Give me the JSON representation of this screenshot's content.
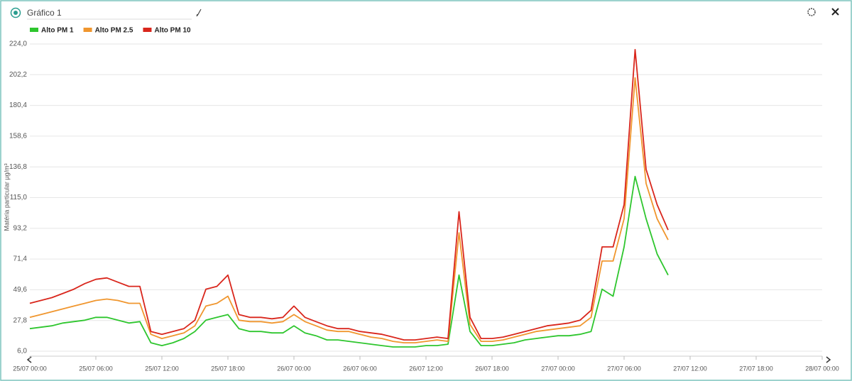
{
  "header": {
    "title": "Gráfico 1"
  },
  "chart_data": {
    "type": "line",
    "y_label": "Matéria particular µg/m³",
    "x": [
      0,
      1,
      2,
      3,
      4,
      5,
      6,
      7,
      8,
      9,
      10,
      11,
      12,
      13,
      14,
      15,
      16,
      17,
      18,
      19,
      20,
      21,
      22,
      23,
      24,
      25,
      26,
      27,
      28,
      29,
      30,
      31,
      32,
      33,
      34,
      35,
      36,
      37,
      38,
      39,
      40,
      41,
      42,
      43,
      44,
      45,
      46,
      47,
      48,
      49,
      50,
      51,
      52,
      53,
      54,
      55,
      56,
      57,
      58
    ],
    "series": [
      {
        "name": "Alto PM 1",
        "color": "#2ec62e",
        "values": [
          22,
          23,
          24,
          26,
          27,
          28,
          30,
          30,
          28,
          26,
          27,
          12,
          10,
          12,
          15,
          20,
          28,
          30,
          32,
          22,
          20,
          20,
          19,
          19,
          24,
          19,
          17,
          14,
          14,
          13,
          12,
          11,
          10,
          9,
          9,
          9,
          10,
          10,
          11,
          60,
          20,
          10,
          10,
          11,
          12,
          14,
          15,
          16,
          17,
          17,
          18,
          20,
          50,
          45,
          80,
          130,
          100,
          75,
          60
        ]
      },
      {
        "name": "Alto PM 2.5",
        "color": "#f0962e",
        "values": [
          30,
          32,
          34,
          36,
          38,
          40,
          42,
          43,
          42,
          40,
          40,
          18,
          15,
          17,
          19,
          24,
          38,
          40,
          45,
          28,
          27,
          27,
          26,
          27,
          32,
          27,
          24,
          21,
          20,
          20,
          18,
          16,
          15,
          13,
          12,
          12,
          13,
          14,
          13,
          90,
          25,
          13,
          13,
          14,
          16,
          18,
          20,
          21,
          22,
          23,
          24,
          30,
          70,
          70,
          100,
          200,
          125,
          100,
          85
        ]
      },
      {
        "name": "Alto PM 10",
        "color": "#d9261c",
        "values": [
          40,
          42,
          44,
          47,
          50,
          54,
          57,
          58,
          55,
          52,
          52,
          20,
          18,
          20,
          22,
          28,
          50,
          52,
          60,
          32,
          30,
          30,
          29,
          30,
          38,
          30,
          27,
          24,
          22,
          22,
          20,
          19,
          18,
          16,
          14,
          14,
          15,
          16,
          15,
          105,
          30,
          15,
          15,
          16,
          18,
          20,
          22,
          24,
          25,
          26,
          28,
          35,
          80,
          80,
          110,
          220,
          135,
          110,
          92
        ]
      }
    ],
    "xlim": [
      0,
      72
    ],
    "xticks": [
      {
        "value": 0,
        "label": "25/07 00:00"
      },
      {
        "value": 6,
        "label": "25/07 06:00"
      },
      {
        "value": 12,
        "label": "25/07 12:00"
      },
      {
        "value": 18,
        "label": "25/07 18:00"
      },
      {
        "value": 24,
        "label": "26/07 00:00"
      },
      {
        "value": 30,
        "label": "26/07 06:00"
      },
      {
        "value": 36,
        "label": "26/07 12:00"
      },
      {
        "value": 42,
        "label": "26/07 18:00"
      },
      {
        "value": 48,
        "label": "27/07 00:00"
      },
      {
        "value": 54,
        "label": "27/07 06:00"
      },
      {
        "value": 60,
        "label": "27/07 12:00"
      },
      {
        "value": 66,
        "label": "27/07 18:00"
      },
      {
        "value": 72,
        "label": "28/07 00:00"
      }
    ],
    "ylim": [
      6,
      224
    ],
    "yticks": [
      {
        "value": 6,
        "label": "6,0"
      },
      {
        "value": 27.8,
        "label": "27,8"
      },
      {
        "value": 49.6,
        "label": "49,6"
      },
      {
        "value": 71.4,
        "label": "71,4"
      },
      {
        "value": 93.2,
        "label": "93,2"
      },
      {
        "value": 115,
        "label": "115,0"
      },
      {
        "value": 136.8,
        "label": "136,8"
      },
      {
        "value": 158.6,
        "label": "158,6"
      },
      {
        "value": 180.4,
        "label": "180,4"
      },
      {
        "value": 202.2,
        "label": "202,2"
      },
      {
        "value": 224,
        "label": "224,0"
      }
    ],
    "grid": true
  }
}
